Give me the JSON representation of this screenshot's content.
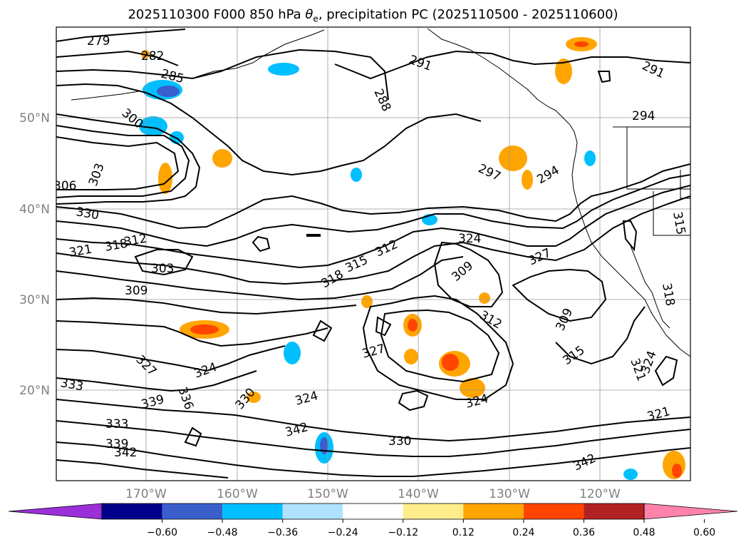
{
  "title": {
    "main": "2025110300 F000 850 hPa ",
    "theta": "θ",
    "theta_sub": "e",
    "rest": ", precipitation PC (2025110500 - 2025110600)"
  },
  "lat_labels": [
    "50°N",
    "40°N",
    "30°N",
    "20°N"
  ],
  "lon_labels": [
    "170°W",
    "160°W",
    "150°W",
    "140°W",
    "130°W",
    "120°W"
  ],
  "contour_labels": [
    "279",
    "282",
    "285",
    "288",
    "291",
    "291",
    "294",
    "294",
    "297",
    "300",
    "303",
    "303",
    "306",
    "309",
    "309",
    "309",
    "312",
    "312",
    "312",
    "315",
    "315",
    "315",
    "318",
    "318",
    "318",
    "321",
    "321",
    "321",
    "324",
    "324",
    "324",
    "324",
    "324",
    "327",
    "327",
    "327",
    "330",
    "330",
    "330",
    "333",
    "333",
    "336",
    "339",
    "339",
    "342",
    "342",
    "342"
  ],
  "colorbar": {
    "ticks": [
      "−0.60",
      "−0.48",
      "−0.36",
      "−0.24",
      "−0.12",
      "0.12",
      "0.24",
      "0.36",
      "0.48",
      "0.60"
    ],
    "colors": [
      "#9b30d9",
      "#00008b",
      "#3a5fcd",
      "#00bfff",
      "#b0e2ff",
      "#ffffff",
      "#ffec8b",
      "#ffa500",
      "#ff4500",
      "#b22222",
      "#ff82ab"
    ]
  }
}
